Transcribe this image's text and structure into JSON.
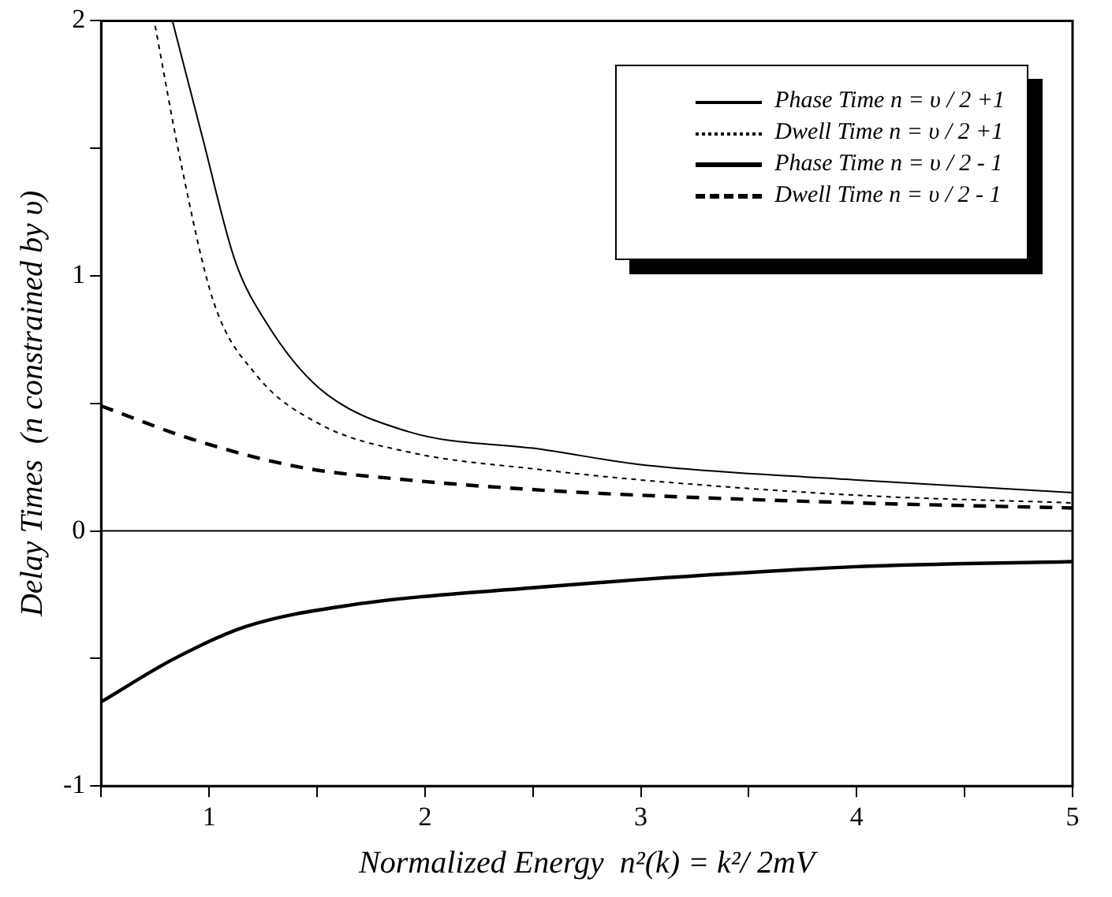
{
  "chart_data": {
    "type": "line",
    "xlabel": "Normalized Energy  n²(k) = k²/ 2mV",
    "ylabel": "Delay Times  (n constrained by υ)",
    "xlim": [
      0.5,
      5
    ],
    "xticks": [
      {
        "value": 0.5,
        "label": null
      },
      1,
      {
        "value": 1.5,
        "label": null
      },
      2,
      {
        "value": 2.5,
        "label": null
      },
      3,
      {
        "value": 3.5,
        "label": null
      },
      4,
      {
        "value": 4.5,
        "label": null
      },
      5
    ],
    "ylim": [
      -1,
      2
    ],
    "yticks": [
      -1,
      {
        "value": -0.5,
        "label": null
      },
      0,
      {
        "value": 0.5,
        "label": null
      },
      1,
      {
        "value": 1.5,
        "label": null
      },
      2
    ],
    "grid": false,
    "legend": "top right",
    "marker": "none",
    "ref_lines": [
      {
        "axis": "y",
        "value": 0,
        "color": "#000000"
      }
    ],
    "series": [
      {
        "name": "Phase Time  n = υ / 2 +1",
        "color": "#000000",
        "line_style": "solid",
        "x": [
          0.83,
          0.97,
          1.12,
          1.27,
          1.51,
          1.92,
          2.54,
          3,
          4,
          5
        ],
        "values": [
          2,
          1.54,
          1.06,
          0.81,
          0.56,
          0.39,
          0.32,
          0.26,
          0.2,
          0.15
        ]
      },
      {
        "name": "Dwell Time n = υ / 2 +1",
        "color": "#000000",
        "line_style": "dotted",
        "x": [
          0.75,
          0.87,
          1.02,
          1.22,
          1.51,
          1.92,
          2.54,
          3,
          4,
          5
        ],
        "values": [
          1.98,
          1.44,
          0.9,
          0.61,
          0.42,
          0.31,
          0.24,
          0.2,
          0.14,
          0.11
        ]
      },
      {
        "name": "Phase Time  n = υ / 2 - 1",
        "color": "#000000",
        "line_style": "solid",
        "x": [
          0.5,
          0.84,
          1.17,
          1.66,
          2.54,
          3,
          4,
          5
        ],
        "values": [
          -0.67,
          -0.5,
          -0.375,
          -0.29,
          -0.22,
          -0.19,
          -0.14,
          -0.12
        ]
      },
      {
        "name": "Dwell Time n = υ / 2 - 1",
        "color": "#000000",
        "line_style": "dashed",
        "x": [
          0.5,
          0.92,
          1.42,
          1.92,
          2.54,
          3,
          4,
          5
        ],
        "values": [
          0.49,
          0.36,
          0.25,
          0.2,
          0.16,
          0.14,
          0.11,
          0.09
        ]
      }
    ]
  }
}
